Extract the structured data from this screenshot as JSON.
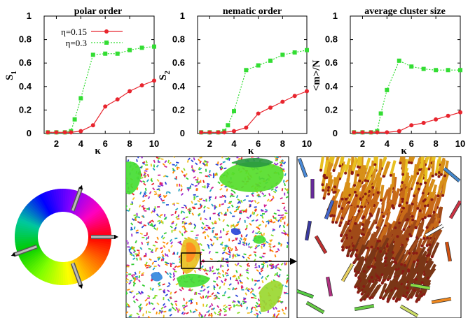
{
  "chart_data": [
    {
      "type": "line",
      "title": "polar order",
      "xlabel": "κ",
      "ylabel": "S",
      "ylabel_sub": "1",
      "xlim": [
        1,
        10
      ],
      "ylim": [
        0,
        1
      ],
      "xticks": [
        "2",
        "4",
        "6",
        "8",
        "10"
      ],
      "yticks": [
        "0",
        "0.2",
        "0.4",
        "0.6",
        "0.8",
        "1"
      ],
      "grid": false,
      "legend": "top-left",
      "series": [
        {
          "name": "η=0.15",
          "color": "#e8252e",
          "marker": "circle",
          "line": "solid",
          "x": [
            1.3,
            2,
            2.7,
            3.2,
            4,
            5,
            6,
            7,
            8,
            9,
            10
          ],
          "y": [
            0.01,
            0.01,
            0.01,
            0.01,
            0.02,
            0.07,
            0.23,
            0.29,
            0.36,
            0.41,
            0.45
          ]
        },
        {
          "name": "η=0.3",
          "color": "#33dd33",
          "marker": "square",
          "line": "dotted",
          "x": [
            1.3,
            2,
            2.7,
            3.2,
            3.5,
            4,
            5,
            6,
            7,
            8,
            9,
            10
          ],
          "y": [
            0.01,
            0.01,
            0.01,
            0.02,
            0.12,
            0.3,
            0.67,
            0.68,
            0.68,
            0.71,
            0.73,
            0.74
          ]
        }
      ]
    },
    {
      "type": "line",
      "title": "nematic order",
      "xlabel": "κ",
      "ylabel": "S",
      "ylabel_sub": "2",
      "xlim": [
        1,
        10
      ],
      "ylim": [
        0,
        1
      ],
      "xticks": [
        "2",
        "4",
        "6",
        "8",
        "10"
      ],
      "yticks": [
        "0",
        "0.2",
        "0.4",
        "0.6",
        "0.8",
        "1"
      ],
      "grid": false,
      "series": [
        {
          "name": "η=0.15",
          "color": "#e8252e",
          "marker": "circle",
          "line": "solid",
          "x": [
            1.3,
            2,
            2.7,
            3.2,
            4,
            5,
            6,
            7,
            8,
            9,
            10
          ],
          "y": [
            0.01,
            0.01,
            0.01,
            0.01,
            0.02,
            0.05,
            0.17,
            0.22,
            0.27,
            0.32,
            0.36
          ]
        },
        {
          "name": "η=0.3",
          "color": "#33dd33",
          "marker": "square",
          "line": "dotted",
          "x": [
            1.3,
            2,
            2.7,
            3.2,
            3.5,
            4,
            5,
            6,
            7,
            8,
            9,
            10
          ],
          "y": [
            0.01,
            0.01,
            0.01,
            0.02,
            0.07,
            0.19,
            0.54,
            0.58,
            0.62,
            0.67,
            0.69,
            0.71
          ]
        }
      ]
    },
    {
      "type": "line",
      "title": "average cluster size",
      "xlabel": "κ",
      "ylabel": "<m>/N",
      "ylabel_sub": "",
      "xlim": [
        1,
        10
      ],
      "ylim": [
        0,
        1
      ],
      "xticks": [
        "2",
        "4",
        "6",
        "8",
        "10"
      ],
      "yticks": [
        "0",
        "0.2",
        "0.4",
        "0.6",
        "0.8",
        "1"
      ],
      "grid": false,
      "series": [
        {
          "name": "η=0.15",
          "color": "#e8252e",
          "marker": "circle",
          "line": "solid",
          "x": [
            1.3,
            2,
            2.7,
            3.2,
            4,
            5,
            6,
            7,
            8,
            9,
            10
          ],
          "y": [
            0.01,
            0.01,
            0.01,
            0.01,
            0.01,
            0.02,
            0.07,
            0.09,
            0.12,
            0.15,
            0.18
          ]
        },
        {
          "name": "η=0.3",
          "color": "#33dd33",
          "marker": "square",
          "line": "dotted",
          "x": [
            1.3,
            2,
            2.7,
            3.2,
            3.5,
            4,
            5,
            6,
            7,
            8,
            9,
            10
          ],
          "y": [
            0.01,
            0.01,
            0.01,
            0.02,
            0.17,
            0.37,
            0.62,
            0.57,
            0.55,
            0.54,
            0.54,
            0.54
          ]
        }
      ]
    }
  ],
  "color_wheel": {
    "hue_colors": [
      "#ff0000",
      "#ff8000",
      "#ffff00",
      "#80ff00",
      "#00cc00",
      "#00c8a0",
      "#0000ff",
      "#8000ff",
      "#ff00c0",
      "#ff0000"
    ]
  },
  "snapshot": {
    "background": "#ffffff",
    "particle_colors": [
      "#e8252e",
      "#33cc33",
      "#2a44d8",
      "#f0c020",
      "#9a2ad0",
      "#20a0c0",
      "#ff8800",
      "#88dd22",
      "#d02090"
    ],
    "cluster_color": "#44dd33"
  },
  "zoom": {
    "rod_colors": [
      "#e8c020",
      "#d89018",
      "#c86a18",
      "#a04a18",
      "#7a3616"
    ],
    "cap_color": "#8a1a14"
  }
}
